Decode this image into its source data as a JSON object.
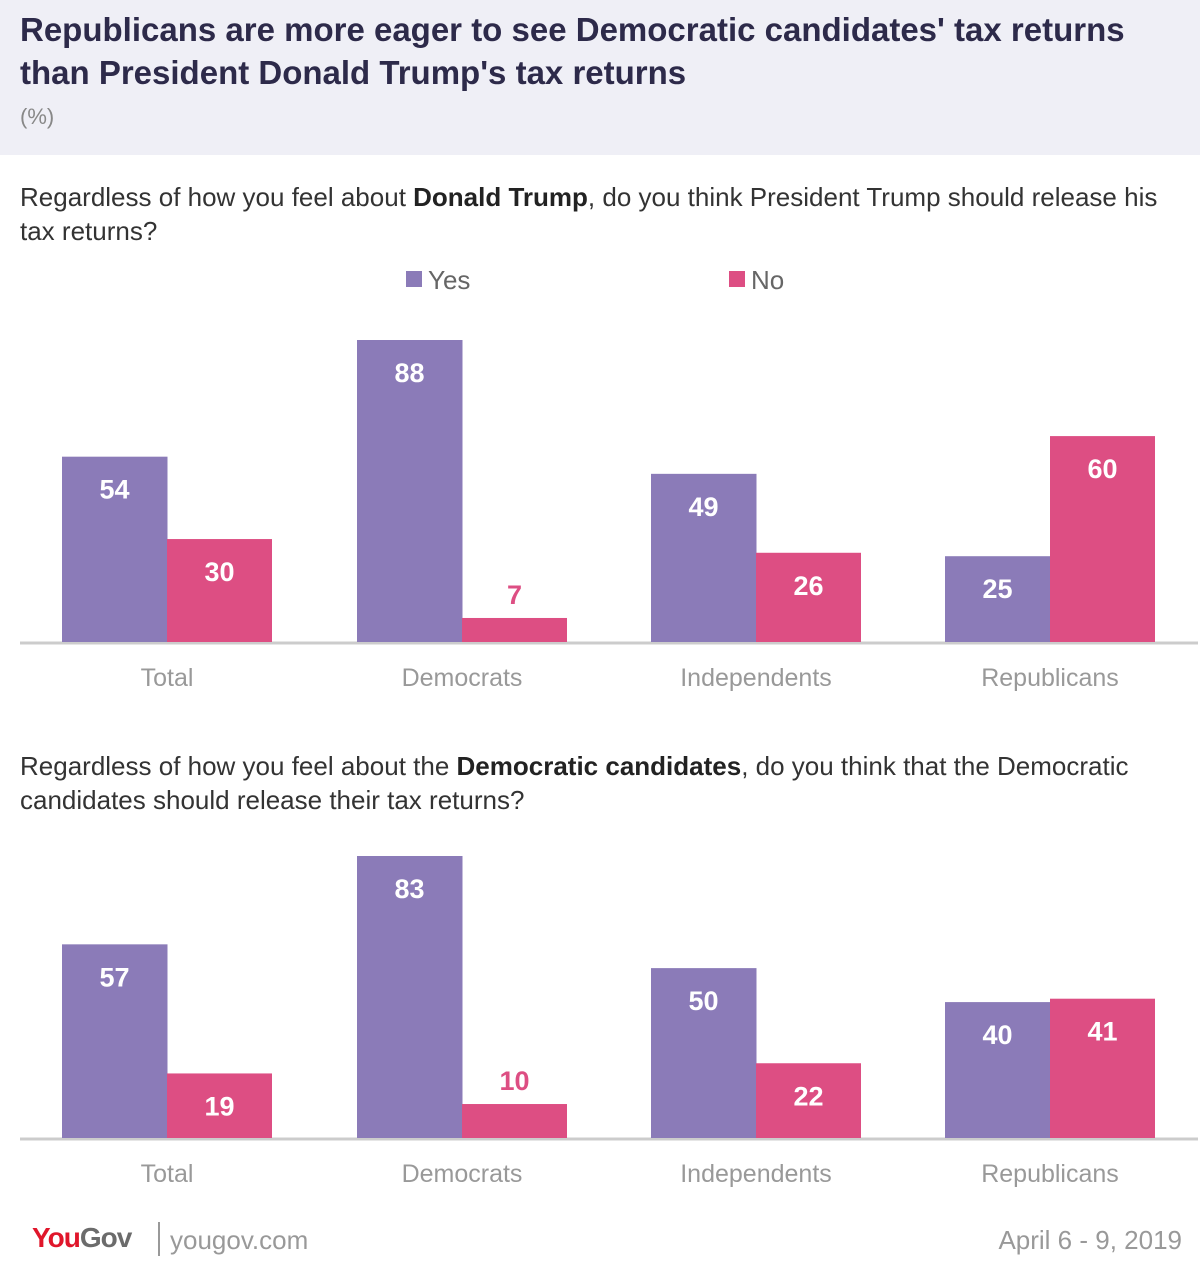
{
  "header": {
    "title": "Republicans are more eager to see Democratic candidates' tax returns than President Donald Trump's tax returns",
    "subtitle": "(%)"
  },
  "legend": {
    "yes_label": "Yes",
    "no_label": "No"
  },
  "colors": {
    "yes": "#8b7bb8",
    "no": "#dd4e83",
    "header_bg": "#efeff6",
    "baseline": "#cccccc"
  },
  "charts": [
    {
      "question_pre": "Regardless of how you feel about ",
      "question_bold": "Donald Trump",
      "question_post": ", do you think President Trump should release his tax returns?"
    },
    {
      "question_pre": "Regardless of how you feel about the ",
      "question_bold": "Democratic candidates",
      "question_post": ", do you think that the Democratic candidates should release their tax returns?"
    }
  ],
  "chart_data": [
    {
      "type": "bar",
      "categories": [
        "Total",
        "Democrats",
        "Independents",
        "Republicans"
      ],
      "series": [
        {
          "name": "Yes",
          "values": [
            54,
            88,
            49,
            25
          ]
        },
        {
          "name": "No",
          "values": [
            30,
            7,
            26,
            60
          ]
        }
      ],
      "ylim": [
        0,
        88
      ],
      "grid": false,
      "legend": "top-center"
    },
    {
      "type": "bar",
      "categories": [
        "Total",
        "Democrats",
        "Independents",
        "Republicans"
      ],
      "series": [
        {
          "name": "Yes",
          "values": [
            57,
            83,
            50,
            40
          ]
        },
        {
          "name": "No",
          "values": [
            19,
            10,
            22,
            41
          ]
        }
      ],
      "ylim": [
        0,
        83
      ],
      "grid": false,
      "legend": "none"
    }
  ],
  "footer": {
    "logo_you": "You",
    "logo_gov": "Gov",
    "url": "yougov.com",
    "date": "April 6 - 9, 2019"
  }
}
